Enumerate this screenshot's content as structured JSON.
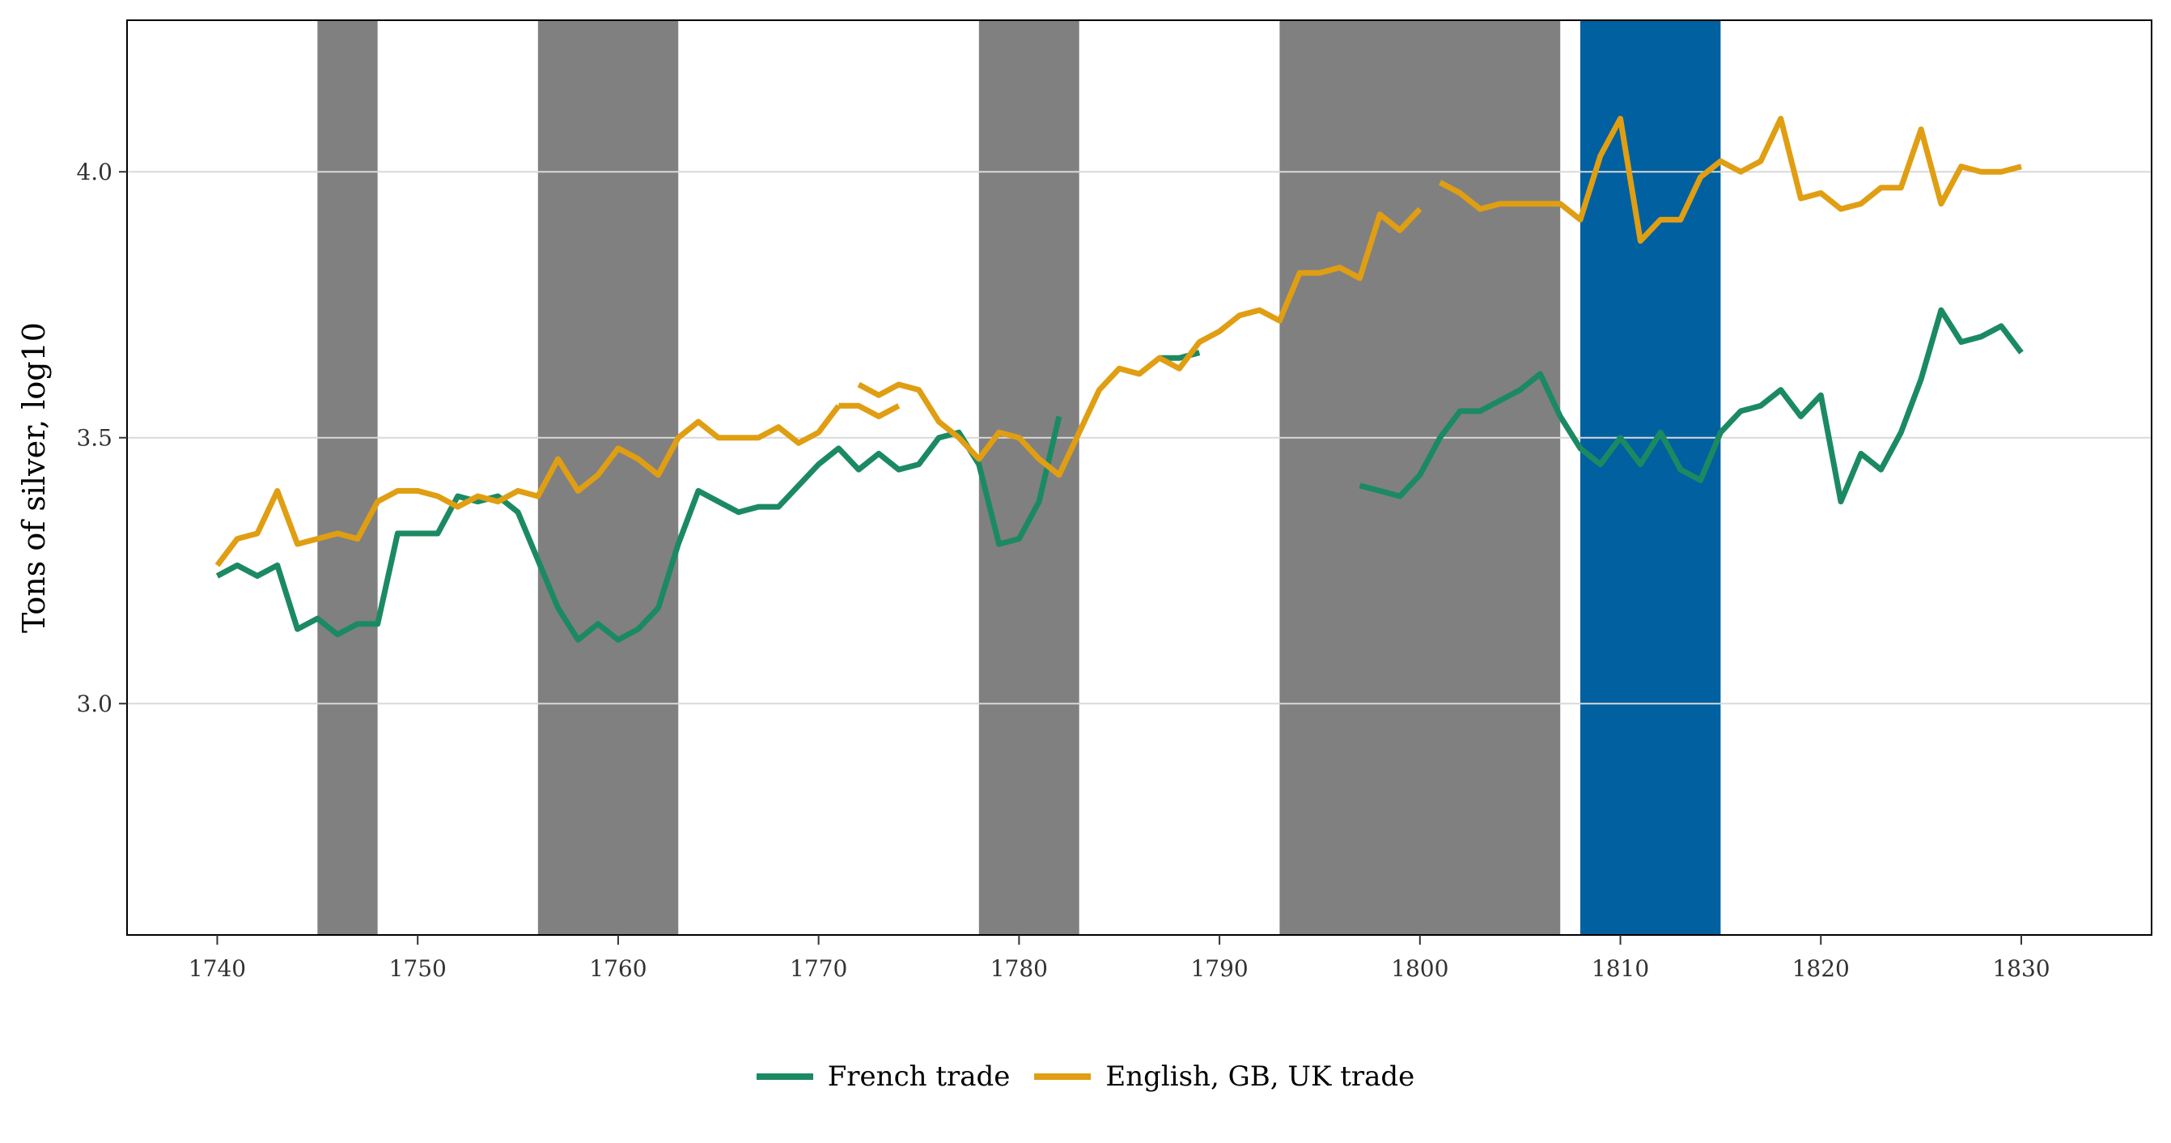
{
  "chart_data": {
    "type": "line",
    "xlabel": "",
    "ylabel": "Tons of silver, log10",
    "xlim": [
      1735.5,
      1836.5
    ],
    "ylim": [
      2.565,
      4.285
    ],
    "x_ticks": [
      1740,
      1750,
      1760,
      1770,
      1780,
      1790,
      1800,
      1810,
      1820,
      1830
    ],
    "x_tick_labels": [
      "1740",
      "1750",
      "1760",
      "1770",
      "1780",
      "1790",
      "1800",
      "1810",
      "1820",
      "1830"
    ],
    "y_ticks": [
      3.0,
      3.5,
      4.0
    ],
    "y_tick_labels": [
      "3.0",
      "3.5",
      "4.0"
    ],
    "grid": "horizontal",
    "legend_position": "bottom",
    "shaded_periods": [
      {
        "start": 1745,
        "end": 1748,
        "color": "#808080"
      },
      {
        "start": 1756,
        "end": 1763,
        "color": "#808080"
      },
      {
        "start": 1778,
        "end": 1783,
        "color": "#808080"
      },
      {
        "start": 1793,
        "end": 1807,
        "color": "#808080"
      },
      {
        "start": 1808,
        "end": 1815,
        "color": "#0060A0"
      }
    ],
    "series": [
      {
        "name": "French trade",
        "color": "#1B8A62",
        "segments": [
          [
            [
              1740,
              3.24
            ],
            [
              1741,
              3.26
            ],
            [
              1742,
              3.24
            ],
            [
              1743,
              3.26
            ],
            [
              1744,
              3.14
            ],
            [
              1745,
              3.16
            ],
            [
              1746,
              3.13
            ],
            [
              1747,
              3.15
            ],
            [
              1748,
              3.15
            ],
            [
              1749,
              3.32
            ],
            [
              1750,
              3.32
            ],
            [
              1751,
              3.32
            ],
            [
              1752,
              3.39
            ],
            [
              1753,
              3.38
            ],
            [
              1754,
              3.39
            ],
            [
              1755,
              3.36
            ],
            [
              1756,
              3.27
            ],
            [
              1757,
              3.18
            ],
            [
              1758,
              3.12
            ],
            [
              1759,
              3.15
            ],
            [
              1760,
              3.12
            ],
            [
              1761,
              3.14
            ],
            [
              1762,
              3.18
            ],
            [
              1763,
              3.3
            ],
            [
              1764,
              3.4
            ],
            [
              1765,
              3.38
            ],
            [
              1766,
              3.36
            ],
            [
              1767,
              3.37
            ],
            [
              1768,
              3.37
            ],
            [
              1769,
              3.41
            ],
            [
              1770,
              3.45
            ],
            [
              1771,
              3.48
            ],
            [
              1772,
              3.44
            ],
            [
              1773,
              3.47
            ],
            [
              1774,
              3.44
            ],
            [
              1775,
              3.45
            ],
            [
              1776,
              3.5
            ],
            [
              1777,
              3.51
            ],
            [
              1778,
              3.45
            ],
            [
              1779,
              3.3
            ],
            [
              1780,
              3.31
            ],
            [
              1781,
              3.38
            ],
            [
              1782,
              3.54
            ]
          ],
          [
            [
              1787,
              3.65
            ],
            [
              1788,
              3.65
            ],
            [
              1789,
              3.66
            ]
          ],
          [
            [
              1797,
              3.41
            ],
            [
              1798,
              3.4
            ],
            [
              1799,
              3.39
            ],
            [
              1800,
              3.43
            ],
            [
              1801,
              3.5
            ],
            [
              1802,
              3.55
            ],
            [
              1803,
              3.55
            ],
            [
              1804,
              3.57
            ],
            [
              1805,
              3.59
            ],
            [
              1806,
              3.62
            ],
            [
              1807,
              3.54
            ],
            [
              1808,
              3.48
            ],
            [
              1809,
              3.45
            ],
            [
              1810,
              3.5
            ],
            [
              1811,
              3.45
            ],
            [
              1812,
              3.51
            ],
            [
              1813,
              3.44
            ],
            [
              1814,
              3.42
            ],
            [
              1815,
              3.51
            ],
            [
              1816,
              3.55
            ],
            [
              1817,
              3.56
            ],
            [
              1818,
              3.59
            ],
            [
              1819,
              3.54
            ],
            [
              1820,
              3.58
            ],
            [
              1821,
              3.38
            ],
            [
              1822,
              3.47
            ],
            [
              1823,
              3.44
            ],
            [
              1824,
              3.51
            ],
            [
              1825,
              3.61
            ],
            [
              1826,
              3.74
            ],
            [
              1827,
              3.68
            ],
            [
              1828,
              3.69
            ],
            [
              1829,
              3.71
            ],
            [
              1830,
              3.66
            ]
          ]
        ]
      },
      {
        "name": "English, GB, UK trade",
        "color": "#E09E12",
        "segments": [
          [
            [
              1740,
              3.26
            ],
            [
              1741,
              3.31
            ],
            [
              1742,
              3.32
            ],
            [
              1743,
              3.4
            ],
            [
              1744,
              3.3
            ],
            [
              1745,
              3.31
            ],
            [
              1746,
              3.32
            ],
            [
              1747,
              3.31
            ],
            [
              1748,
              3.38
            ],
            [
              1749,
              3.4
            ],
            [
              1750,
              3.4
            ],
            [
              1751,
              3.39
            ],
            [
              1752,
              3.37
            ],
            [
              1753,
              3.39
            ],
            [
              1754,
              3.38
            ],
            [
              1755,
              3.4
            ],
            [
              1756,
              3.39
            ],
            [
              1757,
              3.46
            ],
            [
              1758,
              3.4
            ],
            [
              1759,
              3.43
            ],
            [
              1760,
              3.48
            ],
            [
              1761,
              3.46
            ],
            [
              1762,
              3.43
            ],
            [
              1763,
              3.5
            ],
            [
              1764,
              3.53
            ],
            [
              1765,
              3.5
            ],
            [
              1766,
              3.5
            ],
            [
              1767,
              3.5
            ],
            [
              1768,
              3.52
            ],
            [
              1769,
              3.49
            ],
            [
              1770,
              3.51
            ],
            [
              1771,
              3.56
            ]
          ],
          [
            [
              1772,
              3.6
            ],
            [
              1773,
              3.58
            ],
            [
              1774,
              3.6
            ],
            [
              1775,
              3.59
            ],
            [
              1776,
              3.53
            ],
            [
              1777,
              3.5
            ],
            [
              1778,
              3.46
            ],
            [
              1779,
              3.51
            ],
            [
              1780,
              3.5
            ],
            [
              1781,
              3.46
            ],
            [
              1782,
              3.43
            ],
            [
              1783,
              3.51
            ],
            [
              1784,
              3.59
            ],
            [
              1785,
              3.63
            ],
            [
              1786,
              3.62
            ],
            [
              1787,
              3.65
            ],
            [
              1788,
              3.63
            ],
            [
              1789,
              3.68
            ],
            [
              1790,
              3.7
            ],
            [
              1791,
              3.73
            ],
            [
              1792,
              3.74
            ],
            [
              1793,
              3.72
            ],
            [
              1794,
              3.81
            ],
            [
              1795,
              3.81
            ],
            [
              1796,
              3.82
            ],
            [
              1797,
              3.8
            ],
            [
              1798,
              3.92
            ],
            [
              1799,
              3.89
            ],
            [
              1800,
              3.93
            ]
          ],
          [
            [
              1771,
              3.56
            ],
            [
              1772,
              3.56
            ],
            [
              1773,
              3.54
            ],
            [
              1774,
              3.56
            ]
          ],
          [
            [
              1801,
              3.98
            ],
            [
              1802,
              3.96
            ],
            [
              1803,
              3.93
            ],
            [
              1804,
              3.94
            ],
            [
              1805,
              3.94
            ],
            [
              1806,
              3.94
            ],
            [
              1807,
              3.94
            ],
            [
              1808,
              3.91
            ],
            [
              1809,
              4.03
            ],
            [
              1810,
              4.1
            ],
            [
              1811,
              3.87
            ],
            [
              1812,
              3.91
            ],
            [
              1813,
              3.91
            ],
            [
              1814,
              3.99
            ],
            [
              1815,
              4.02
            ],
            [
              1816,
              4.0
            ],
            [
              1817,
              4.02
            ],
            [
              1818,
              4.1
            ],
            [
              1819,
              3.95
            ],
            [
              1820,
              3.96
            ],
            [
              1821,
              3.93
            ],
            [
              1822,
              3.94
            ],
            [
              1823,
              3.97
            ],
            [
              1824,
              3.97
            ],
            [
              1825,
              4.08
            ],
            [
              1826,
              3.94
            ],
            [
              1827,
              4.01
            ],
            [
              1828,
              4.0
            ],
            [
              1829,
              4.0
            ],
            [
              1830,
              4.01
            ]
          ]
        ]
      }
    ]
  }
}
